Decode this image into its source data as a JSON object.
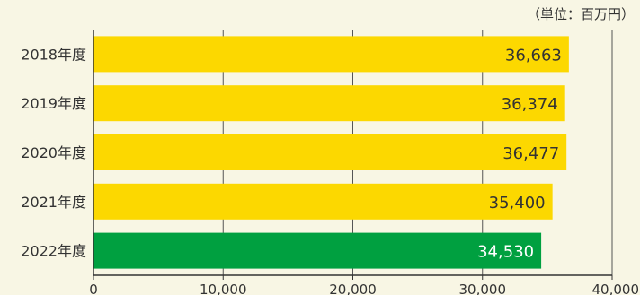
{
  "chart_data": {
    "type": "bar",
    "orientation": "horizontal",
    "unit_note": "（単位：百万円）",
    "categories": [
      "2018年度",
      "2019年度",
      "2020年度",
      "2021年度",
      "2022年度"
    ],
    "values": [
      36663,
      36374,
      36477,
      35400,
      34530
    ],
    "value_labels": [
      "36,663",
      "36,374",
      "36,477",
      "35,400",
      "34,530"
    ],
    "xlim": [
      0,
      40000
    ],
    "x_ticks": [
      0,
      10000,
      20000,
      30000,
      40000
    ],
    "x_tick_labels": [
      "0",
      "10,000",
      "20,000",
      "30,000",
      "40,000"
    ],
    "grid": true,
    "colors": {
      "background": "#f8f6e4",
      "default_bar": "#fcd800",
      "highlight_bar": "#00a040",
      "default_label": "#333333",
      "highlight_label": "#ffffff",
      "axis": "#333333",
      "grid": "#555555"
    },
    "highlight_category": "2022年度"
  }
}
